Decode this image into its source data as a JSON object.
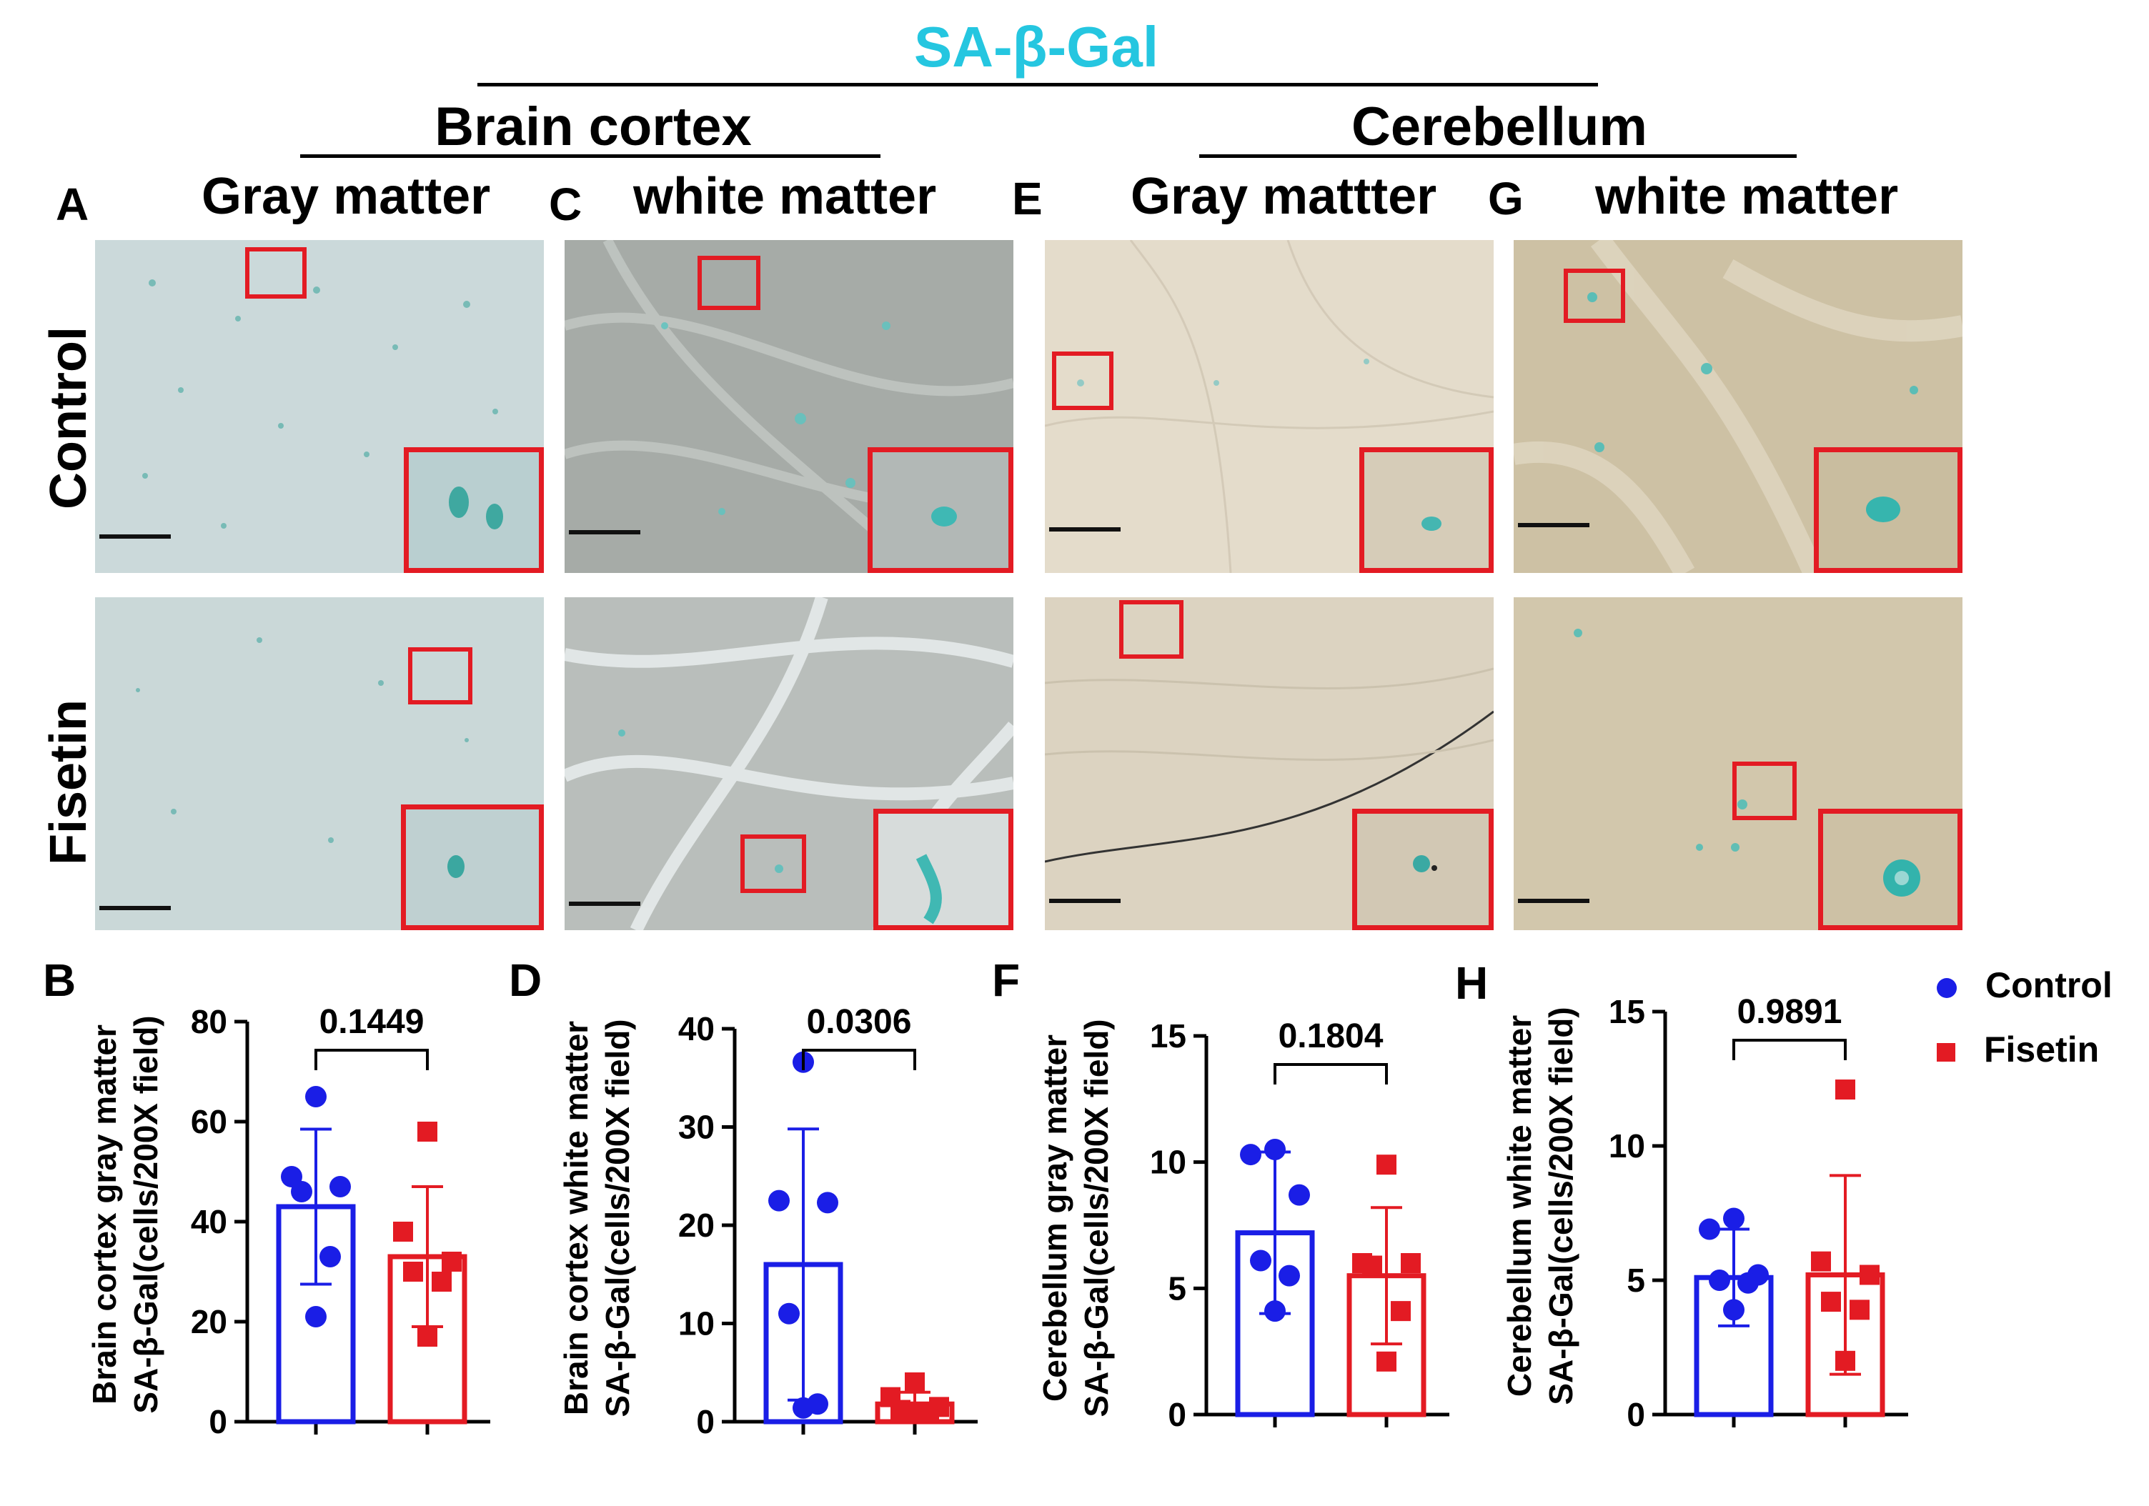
{
  "title": "SA-β-Gal",
  "regions": {
    "brain_cortex": "Brain cortex",
    "cerebellum": "Cerebellum"
  },
  "panel_titles": {
    "A": "Gray matter",
    "C": "white matter",
    "E": "Gray mattter",
    "G": "white matter"
  },
  "panel_letters": [
    "A",
    "B",
    "C",
    "D",
    "E",
    "F",
    "G",
    "H"
  ],
  "row_labels": {
    "control": "Control",
    "fisetin": "Fisetin"
  },
  "colors": {
    "title": "#25c6e0",
    "control": "#1a1ee6",
    "fisetin": "#e31b23",
    "inset_border": "#e31b23"
  },
  "legend": [
    {
      "label": "Control",
      "marker": "circle",
      "color": "#1a1ee6"
    },
    {
      "label": "Fisetin",
      "marker": "square",
      "color": "#e31b23"
    }
  ],
  "chart_data": [
    {
      "panel": "B",
      "type": "bar",
      "ylabel_line1": "Brain cortex gray matter",
      "ylabel_line2": "SA-β-Gal(cells/200X field)",
      "ylim": [
        0,
        80
      ],
      "yticks": [
        "0",
        "20",
        "40",
        "60",
        "80"
      ],
      "categories": [
        "Control",
        "Fisetin"
      ],
      "series": [
        {
          "name": "Control",
          "mean": 43,
          "sd": 15.5,
          "points": [
            65,
            49,
            47,
            46,
            33,
            21
          ]
        },
        {
          "name": "Fisetin",
          "mean": 33,
          "sd": 14,
          "points": [
            58,
            38,
            32,
            30,
            28,
            17
          ]
        }
      ],
      "p_value": "0.1449"
    },
    {
      "panel": "D",
      "type": "bar",
      "ylabel_line1": "Brain cortex white matter",
      "ylabel_line2": "SA-β-Gal(cells/200X field)",
      "ylim": [
        0,
        40
      ],
      "yticks": [
        "0",
        "10",
        "20",
        "30",
        "40"
      ],
      "categories": [
        "Control",
        "Fisetin"
      ],
      "series": [
        {
          "name": "Control",
          "mean": 16,
          "sd": 13.8,
          "points": [
            36.6,
            22.5,
            22.3,
            11,
            1.8,
            1.4
          ]
        },
        {
          "name": "Fisetin",
          "mean": 1.8,
          "sd": 1.2,
          "points": [
            4,
            2.5,
            1.5,
            1.2,
            1,
            0.8
          ]
        }
      ],
      "p_value": "0.0306"
    },
    {
      "panel": "F",
      "type": "bar",
      "ylabel_line1": "Cerebellum gray matter",
      "ylabel_line2": "SA-β-Gal(cells/200X field)",
      "ylim": [
        0,
        15
      ],
      "yticks": [
        "0",
        "5",
        "10",
        "15"
      ],
      "categories": [
        "Control",
        "Fisetin"
      ],
      "series": [
        {
          "name": "Control",
          "mean": 7.2,
          "sd": 3.2,
          "points": [
            10.5,
            10.3,
            8.7,
            6.1,
            5.5,
            4.1
          ]
        },
        {
          "name": "Fisetin",
          "mean": 5.5,
          "sd": 2.7,
          "points": [
            9.9,
            6,
            6,
            5.9,
            4.1,
            2.1
          ]
        }
      ],
      "p_value": "0.1804"
    },
    {
      "panel": "H",
      "type": "bar",
      "ylabel_line1": "Cerebellum white matter",
      "ylabel_line2": "SA-β-Gal(cells/200X field)",
      "ylim": [
        0,
        15
      ],
      "yticks": [
        "0",
        "5",
        "10",
        "15"
      ],
      "categories": [
        "Control",
        "Fisetin"
      ],
      "series": [
        {
          "name": "Control",
          "mean": 5.1,
          "sd": 1.8,
          "points": [
            7.3,
            6.9,
            5.2,
            5,
            4.9,
            3.9
          ]
        },
        {
          "name": "Fisetin",
          "mean": 5.2,
          "sd": 3.7,
          "points": [
            12.1,
            5.7,
            5.2,
            4.2,
            3.9,
            2
          ]
        }
      ],
      "p_value": "0.9891"
    }
  ]
}
